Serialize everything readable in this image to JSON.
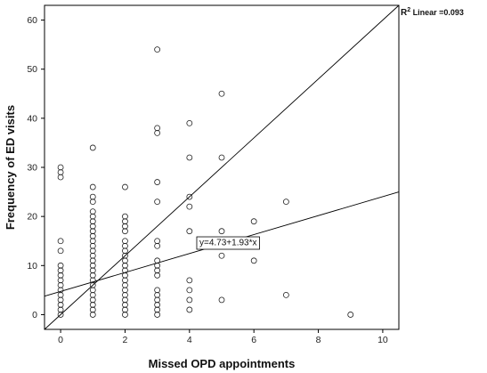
{
  "chart_data": {
    "type": "scatter",
    "title": "",
    "xlabel": "Missed OPD appointments",
    "ylabel": "Frequency of ED visits",
    "xlim": [
      -0.5,
      10.5
    ],
    "ylim": [
      -3,
      63
    ],
    "xticks": [
      0,
      2,
      4,
      6,
      8,
      10
    ],
    "yticks": [
      0,
      10,
      20,
      30,
      40,
      50,
      60
    ],
    "grid": false,
    "marker": "open-circle",
    "points": [
      [
        0,
        0
      ],
      [
        0,
        1
      ],
      [
        0,
        2
      ],
      [
        0,
        3
      ],
      [
        0,
        4
      ],
      [
        0,
        5
      ],
      [
        0,
        6
      ],
      [
        0,
        7
      ],
      [
        0,
        8
      ],
      [
        0,
        9
      ],
      [
        0,
        10
      ],
      [
        0,
        13
      ],
      [
        0,
        15
      ],
      [
        0,
        28
      ],
      [
        0,
        29
      ],
      [
        0,
        30
      ],
      [
        1,
        0
      ],
      [
        1,
        1
      ],
      [
        1,
        2
      ],
      [
        1,
        3
      ],
      [
        1,
        4
      ],
      [
        1,
        5
      ],
      [
        1,
        6
      ],
      [
        1,
        7
      ],
      [
        1,
        8
      ],
      [
        1,
        9
      ],
      [
        1,
        10
      ],
      [
        1,
        11
      ],
      [
        1,
        12
      ],
      [
        1,
        13
      ],
      [
        1,
        14
      ],
      [
        1,
        15
      ],
      [
        1,
        16
      ],
      [
        1,
        17
      ],
      [
        1,
        18
      ],
      [
        1,
        19
      ],
      [
        1,
        20
      ],
      [
        1,
        21
      ],
      [
        1,
        23
      ],
      [
        1,
        24
      ],
      [
        1,
        26
      ],
      [
        1,
        34
      ],
      [
        2,
        0
      ],
      [
        2,
        1
      ],
      [
        2,
        2
      ],
      [
        2,
        3
      ],
      [
        2,
        4
      ],
      [
        2,
        5
      ],
      [
        2,
        6
      ],
      [
        2,
        7
      ],
      [
        2,
        8
      ],
      [
        2,
        9
      ],
      [
        2,
        10
      ],
      [
        2,
        11
      ],
      [
        2,
        12
      ],
      [
        2,
        13
      ],
      [
        2,
        14
      ],
      [
        2,
        15
      ],
      [
        2,
        17
      ],
      [
        2,
        18
      ],
      [
        2,
        19
      ],
      [
        2,
        20
      ],
      [
        2,
        26
      ],
      [
        3,
        0
      ],
      [
        3,
        1
      ],
      [
        3,
        2
      ],
      [
        3,
        3
      ],
      [
        3,
        4
      ],
      [
        3,
        5
      ],
      [
        3,
        8
      ],
      [
        3,
        9
      ],
      [
        3,
        10
      ],
      [
        3,
        11
      ],
      [
        3,
        14
      ],
      [
        3,
        15
      ],
      [
        3,
        23
      ],
      [
        3,
        27
      ],
      [
        3,
        37
      ],
      [
        3,
        38
      ],
      [
        3,
        54
      ],
      [
        4,
        1
      ],
      [
        4,
        3
      ],
      [
        4,
        5
      ],
      [
        4,
        7
      ],
      [
        4,
        17
      ],
      [
        4,
        22
      ],
      [
        4,
        24
      ],
      [
        4,
        32
      ],
      [
        4,
        39
      ],
      [
        5,
        3
      ],
      [
        5,
        12
      ],
      [
        5,
        14
      ],
      [
        5,
        17
      ],
      [
        5,
        32
      ],
      [
        5,
        45
      ],
      [
        6,
        11
      ],
      [
        6,
        14
      ],
      [
        6,
        19
      ],
      [
        7,
        4
      ],
      [
        7,
        23
      ],
      [
        9,
        0
      ]
    ],
    "fit_line": {
      "intercept": 4.73,
      "slope": 1.93,
      "label": "y=4.73+1.93*x",
      "label_x": 5.2
    },
    "reference_line": {
      "from": [
        -0.5,
        -3
      ],
      "to": [
        10.5,
        63
      ]
    },
    "r2_label": {
      "prefix": "R",
      "sup": "2",
      "suffix": " Linear =0.093"
    }
  }
}
